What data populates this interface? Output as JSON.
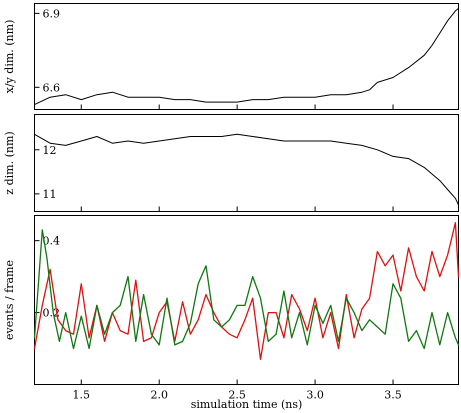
{
  "chart_data": [
    {
      "type": "line",
      "ylabel": "x/y dim. (nm)",
      "xlim": [
        1.2,
        3.92
      ],
      "ylim": [
        6.51,
        6.94
      ],
      "yticks": [
        6.6,
        6.9
      ],
      "series": [
        {
          "color": "#000000",
          "x": [
            1.2,
            1.3,
            1.4,
            1.5,
            1.6,
            1.7,
            1.8,
            1.9,
            2.0,
            2.1,
            2.2,
            2.3,
            2.4,
            2.5,
            2.6,
            2.7,
            2.8,
            2.9,
            3.0,
            3.1,
            3.2,
            3.3,
            3.35,
            3.4,
            3.5,
            3.6,
            3.7,
            3.75,
            3.8,
            3.85,
            3.9,
            3.92
          ],
          "y": [
            6.53,
            6.56,
            6.57,
            6.55,
            6.57,
            6.58,
            6.56,
            6.56,
            6.56,
            6.55,
            6.55,
            6.54,
            6.54,
            6.54,
            6.55,
            6.55,
            6.56,
            6.56,
            6.56,
            6.57,
            6.57,
            6.58,
            6.59,
            6.62,
            6.64,
            6.68,
            6.73,
            6.77,
            6.82,
            6.87,
            6.91,
            6.92
          ]
        }
      ]
    },
    {
      "type": "line",
      "ylabel": "z dim. (nm)",
      "xlim": [
        1.2,
        3.92
      ],
      "ylim": [
        10.6,
        12.8
      ],
      "yticks": [
        11,
        12
      ],
      "series": [
        {
          "color": "#000000",
          "x": [
            1.2,
            1.3,
            1.4,
            1.5,
            1.6,
            1.7,
            1.8,
            1.9,
            2.0,
            2.1,
            2.2,
            2.3,
            2.4,
            2.5,
            2.6,
            2.7,
            2.8,
            2.9,
            3.0,
            3.1,
            3.2,
            3.3,
            3.4,
            3.5,
            3.6,
            3.7,
            3.75,
            3.8,
            3.85,
            3.9,
            3.92
          ],
          "y": [
            12.35,
            12.15,
            12.1,
            12.2,
            12.3,
            12.15,
            12.2,
            12.15,
            12.2,
            12.25,
            12.3,
            12.3,
            12.3,
            12.35,
            12.3,
            12.25,
            12.2,
            12.2,
            12.2,
            12.2,
            12.15,
            12.1,
            12.0,
            11.85,
            11.8,
            11.6,
            11.45,
            11.3,
            11.1,
            10.9,
            10.75
          ]
        }
      ]
    },
    {
      "type": "line",
      "ylabel": "events / frame",
      "xlabel": "simulation time (ns)",
      "xlim": [
        1.2,
        3.92
      ],
      "ylim": [
        0.0,
        0.47
      ],
      "yticks": [
        0.2,
        0.4
      ],
      "xticks": [
        1.5,
        2.0,
        2.5,
        3.0,
        3.5
      ],
      "xticklabels": [
        "1.5",
        "2.0",
        "2.5",
        "3.0",
        "3.5"
      ],
      "series": [
        {
          "color": "#dd1111",
          "x": [
            1.2,
            1.25,
            1.3,
            1.35,
            1.4,
            1.45,
            1.5,
            1.55,
            1.6,
            1.65,
            1.7,
            1.75,
            1.8,
            1.85,
            1.9,
            1.95,
            2.0,
            2.05,
            2.1,
            2.15,
            2.2,
            2.25,
            2.3,
            2.35,
            2.4,
            2.45,
            2.5,
            2.55,
            2.6,
            2.65,
            2.7,
            2.75,
            2.8,
            2.85,
            2.9,
            2.95,
            3.0,
            3.05,
            3.1,
            3.15,
            3.2,
            3.25,
            3.3,
            3.35,
            3.4,
            3.45,
            3.5,
            3.55,
            3.6,
            3.65,
            3.7,
            3.75,
            3.8,
            3.85,
            3.9,
            3.92
          ],
          "y": [
            0.1,
            0.22,
            0.32,
            0.18,
            0.15,
            0.14,
            0.28,
            0.13,
            0.22,
            0.12,
            0.2,
            0.15,
            0.14,
            0.29,
            0.12,
            0.13,
            0.2,
            0.23,
            0.12,
            0.23,
            0.14,
            0.18,
            0.25,
            0.2,
            0.16,
            0.14,
            0.13,
            0.18,
            0.24,
            0.07,
            0.2,
            0.2,
            0.13,
            0.25,
            0.21,
            0.15,
            0.24,
            0.13,
            0.2,
            0.1,
            0.25,
            0.13,
            0.21,
            0.24,
            0.37,
            0.33,
            0.36,
            0.26,
            0.38,
            0.3,
            0.26,
            0.37,
            0.3,
            0.36,
            0.45,
            0.3
          ]
        },
        {
          "color": "#117711",
          "x": [
            1.2,
            1.25,
            1.28,
            1.32,
            1.36,
            1.4,
            1.45,
            1.5,
            1.55,
            1.6,
            1.65,
            1.7,
            1.75,
            1.8,
            1.85,
            1.9,
            1.95,
            2.0,
            2.05,
            2.1,
            2.15,
            2.2,
            2.25,
            2.3,
            2.35,
            2.4,
            2.45,
            2.5,
            2.55,
            2.6,
            2.65,
            2.7,
            2.75,
            2.8,
            2.85,
            2.9,
            2.95,
            3.0,
            3.05,
            3.1,
            3.15,
            3.2,
            3.25,
            3.3,
            3.35,
            3.4,
            3.45,
            3.5,
            3.55,
            3.6,
            3.65,
            3.7,
            3.75,
            3.8,
            3.85,
            3.9,
            3.92
          ],
          "y": [
            0.13,
            0.43,
            0.35,
            0.2,
            0.12,
            0.2,
            0.1,
            0.19,
            0.1,
            0.22,
            0.14,
            0.2,
            0.22,
            0.3,
            0.12,
            0.25,
            0.14,
            0.11,
            0.24,
            0.11,
            0.12,
            0.17,
            0.28,
            0.33,
            0.18,
            0.16,
            0.18,
            0.22,
            0.22,
            0.3,
            0.24,
            0.12,
            0.14,
            0.26,
            0.13,
            0.2,
            0.11,
            0.22,
            0.17,
            0.22,
            0.12,
            0.24,
            0.2,
            0.15,
            0.18,
            0.16,
            0.14,
            0.28,
            0.24,
            0.12,
            0.15,
            0.1,
            0.2,
            0.11,
            0.2,
            0.13,
            0.11
          ]
        }
      ]
    }
  ]
}
